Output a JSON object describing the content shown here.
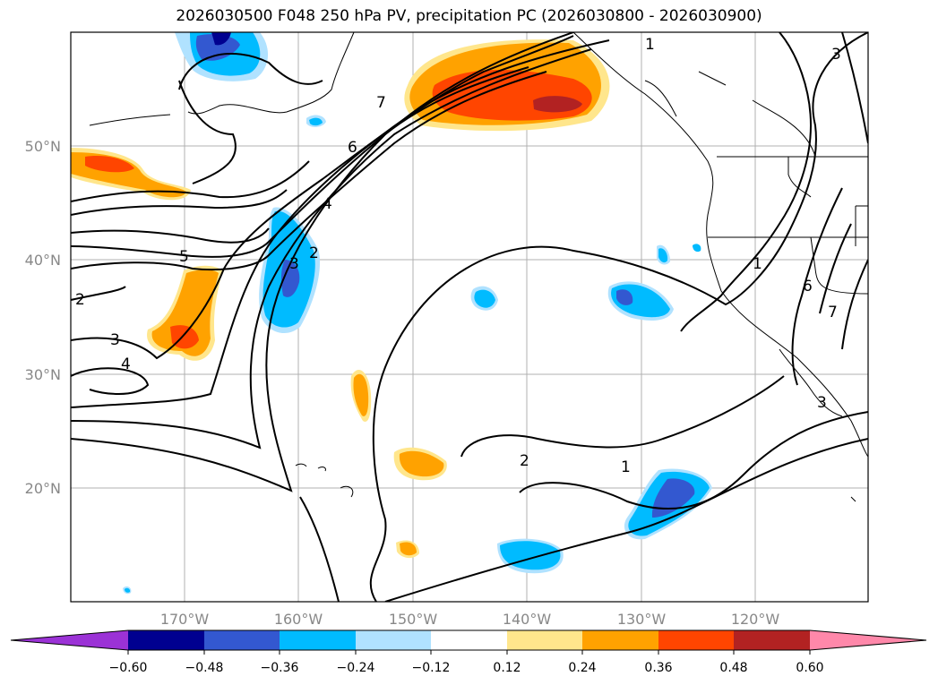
{
  "title": "2026030500 F048 250 hPa PV, precipitation PC (2026030800 - 2026030900)",
  "map": {
    "lat_labels": [
      "50°N",
      "40°N",
      "30°N",
      "20°N"
    ],
    "lon_labels": [
      "170°W",
      "160°W",
      "150°W",
      "140°W",
      "130°W",
      "120°W"
    ],
    "contour_labels": [
      "1",
      "1",
      "1",
      "2",
      "2",
      "2",
      "3",
      "3",
      "3",
      "4",
      "4",
      "5",
      "6",
      "6",
      "7",
      "7",
      "3"
    ]
  },
  "colorbar": {
    "ticks": [
      "−0.60",
      "−0.48",
      "−0.36",
      "−0.24",
      "−0.12",
      "0.12",
      "0.24",
      "0.36",
      "0.48",
      "0.60"
    ],
    "colors": [
      "#9b32d6",
      "#000090",
      "#3358d0",
      "#00bbff",
      "#b0e2ff",
      "#ffffff",
      "#ffe68c",
      "#ffa200",
      "#ff4500",
      "#b22222",
      "#ff88aa"
    ]
  }
}
